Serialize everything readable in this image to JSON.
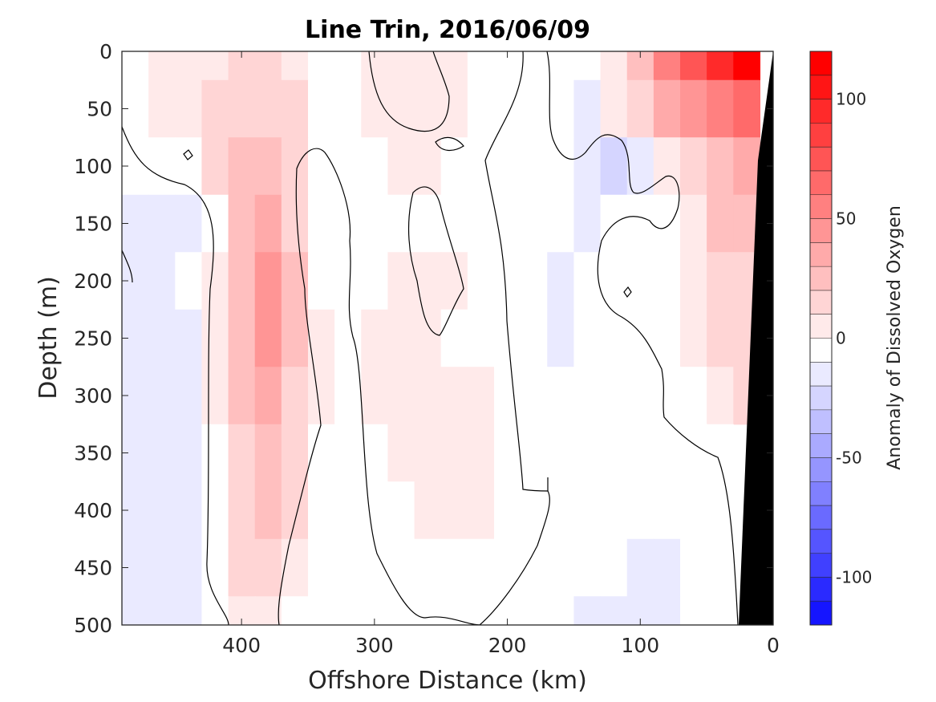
{
  "chart_data": {
    "type": "heatmap",
    "title": "Line Trin, 2016/06/09",
    "xlabel": "Offshore Distance (km)",
    "ylabel": "Depth (m)",
    "xlim": [
      490,
      0
    ],
    "ylim": [
      500,
      0
    ],
    "x_reversed": true,
    "y_reversed": true,
    "xticks": [
      400,
      300,
      200,
      100,
      0
    ],
    "yticks": [
      0,
      50,
      100,
      150,
      200,
      250,
      300,
      350,
      400,
      450,
      500
    ],
    "colorbar": {
      "label": "Anomaly of Dissolved Oxygen",
      "range": [
        -120,
        120
      ],
      "ticks": [
        100,
        50,
        0,
        -50,
        -100
      ],
      "colors": {
        "negative": "#0000ff",
        "zero": "#ffffff",
        "positive": "#ff0000"
      }
    },
    "x": [
      480,
      460,
      440,
      420,
      400,
      380,
      360,
      340,
      320,
      300,
      280,
      260,
      240,
      220,
      200,
      180,
      160,
      140,
      120,
      100,
      80,
      60,
      40,
      20,
      0
    ],
    "y": [
      0,
      50,
      100,
      150,
      200,
      250,
      300,
      350,
      400,
      450,
      500
    ],
    "z": [
      [
        0,
        10,
        10,
        10,
        15,
        15,
        10,
        0,
        0,
        10,
        10,
        10,
        10,
        0,
        0,
        0,
        0,
        0,
        10,
        30,
        55,
        75,
        95,
        120,
        null
      ],
      [
        0,
        10,
        10,
        15,
        20,
        20,
        15,
        0,
        0,
        10,
        10,
        10,
        10,
        0,
        0,
        0,
        0,
        -10,
        10,
        20,
        40,
        50,
        60,
        70,
        null
      ],
      [
        0,
        0,
        0,
        15,
        25,
        30,
        20,
        0,
        0,
        0,
        10,
        10,
        0,
        0,
        0,
        0,
        0,
        -15,
        -25,
        -10,
        10,
        20,
        30,
        35,
        null
      ],
      [
        -10,
        -10,
        -10,
        0,
        25,
        35,
        20,
        0,
        0,
        0,
        0,
        0,
        0,
        0,
        0,
        0,
        0,
        -10,
        0,
        0,
        0,
        10,
        25,
        30,
        null
      ],
      [
        -10,
        -10,
        0,
        10,
        30,
        45,
        25,
        0,
        0,
        0,
        10,
        10,
        10,
        0,
        0,
        0,
        -10,
        0,
        0,
        0,
        0,
        10,
        15,
        20,
        null
      ],
      [
        -10,
        -10,
        -10,
        10,
        30,
        50,
        25,
        10,
        0,
        10,
        10,
        10,
        0,
        0,
        0,
        0,
        -10,
        0,
        0,
        0,
        0,
        10,
        15,
        15,
        null
      ],
      [
        -15,
        -10,
        -10,
        10,
        25,
        40,
        20,
        10,
        0,
        10,
        10,
        10,
        10,
        10,
        0,
        0,
        0,
        0,
        0,
        0,
        0,
        0,
        10,
        15,
        null
      ],
      [
        -10,
        -10,
        -10,
        0,
        20,
        30,
        20,
        0,
        0,
        0,
        10,
        10,
        10,
        10,
        0,
        0,
        0,
        0,
        0,
        0,
        0,
        0,
        0,
        null,
        null
      ],
      [
        -15,
        -10,
        -10,
        0,
        20,
        25,
        15,
        0,
        0,
        0,
        0,
        10,
        10,
        10,
        0,
        0,
        0,
        0,
        0,
        0,
        0,
        0,
        0,
        null,
        null
      ],
      [
        -10,
        -10,
        -10,
        0,
        15,
        20,
        10,
        0,
        0,
        0,
        0,
        0,
        0,
        0,
        0,
        0,
        0,
        0,
        0,
        -10,
        -10,
        0,
        0,
        null,
        null
      ],
      [
        -10,
        -10,
        -10,
        0,
        10,
        10,
        0,
        0,
        0,
        0,
        0,
        0,
        0,
        0,
        0,
        0,
        0,
        -10,
        -10,
        -10,
        -10,
        0,
        0,
        null,
        null
      ]
    ]
  }
}
